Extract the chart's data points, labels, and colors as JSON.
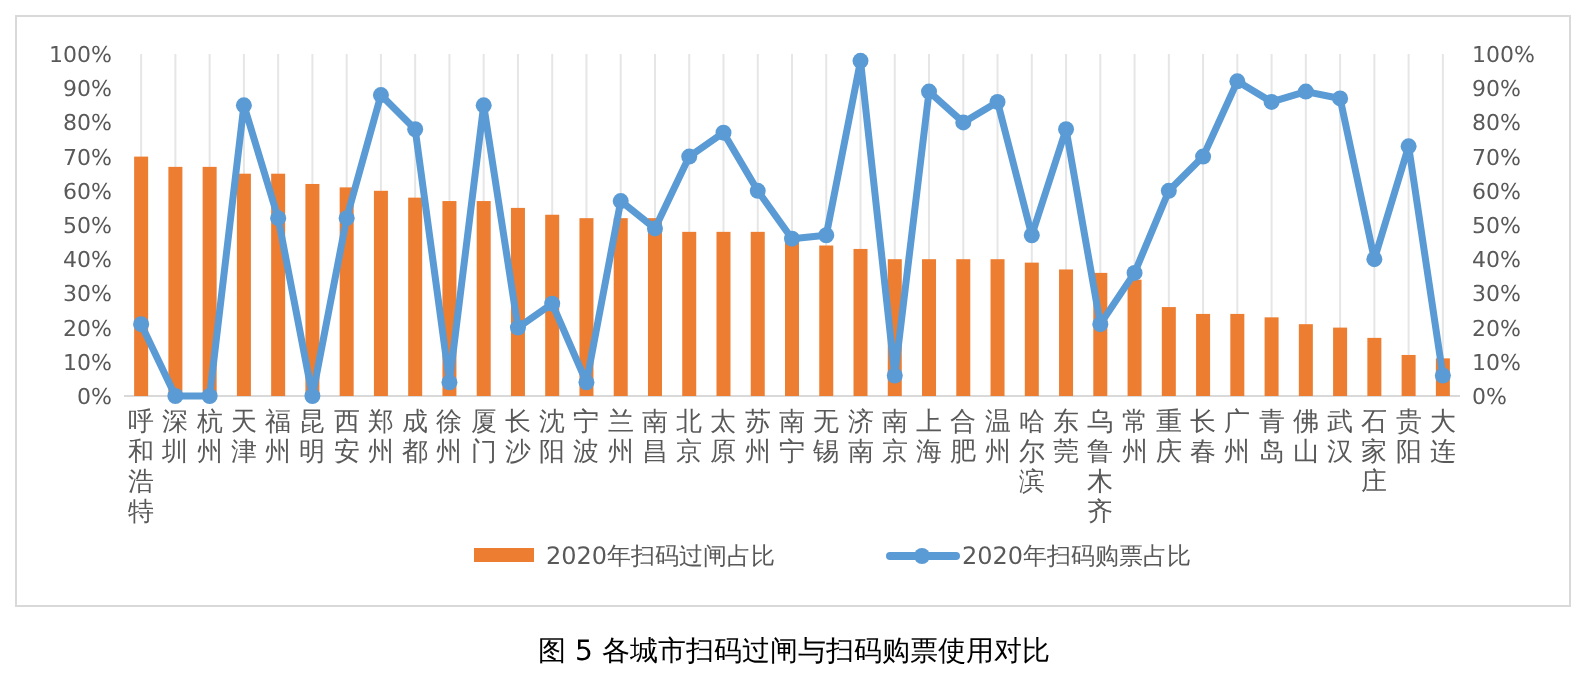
{
  "chart_data": {
    "type": "bar",
    "title": "图 5 各城市扫码过闸与扫码购票使用对比",
    "categories": [
      "呼和浩特",
      "深圳",
      "杭州",
      "天津",
      "福州",
      "昆明",
      "西安",
      "郑州",
      "成都",
      "徐州",
      "厦门",
      "长沙",
      "沈阳",
      "宁波",
      "兰州",
      "南昌",
      "北京",
      "太原",
      "苏州",
      "南宁",
      "无锡",
      "济南",
      "南京",
      "上海",
      "合肥",
      "温州",
      "哈尔滨",
      "东莞",
      "乌鲁木齐",
      "常州",
      "重庆",
      "长春",
      "广州",
      "青岛",
      "佛山",
      "武汉",
      "石家庄",
      "贵阳",
      "大连"
    ],
    "series": [
      {
        "name": "2020年扫码过闸占比",
        "color": "#ed7d31",
        "values": [
          70,
          67,
          67,
          65,
          65,
          62,
          61,
          60,
          58,
          57,
          57,
          55,
          53,
          52,
          52,
          52,
          48,
          48,
          48,
          45,
          44,
          43,
          40,
          40,
          40,
          40,
          39,
          37,
          36,
          34,
          26,
          24,
          24,
          23,
          21,
          20,
          17,
          12,
          11
        ]
      },
      {
        "name": "2020年扫码购票占比",
        "type": "line",
        "axis": "y2",
        "color": "#5b9bd5",
        "marker": "circle",
        "values": [
          21,
          0,
          0,
          85,
          52,
          0,
          52,
          88,
          78,
          4,
          85,
          20,
          27,
          4,
          57,
          49,
          70,
          77,
          60,
          46,
          47,
          98,
          6,
          89,
          80,
          86,
          47,
          78,
          21,
          36,
          60,
          70,
          92,
          86,
          89,
          87,
          40,
          73,
          6
        ]
      }
    ],
    "ylim": [
      0,
      100
    ],
    "yticks": [
      {
        "value": 0,
        "label": "0%"
      },
      {
        "value": 10,
        "label": "10%"
      },
      {
        "value": 20,
        "label": "20%"
      },
      {
        "value": 30,
        "label": "30%"
      },
      {
        "value": 40,
        "label": "40%"
      },
      {
        "value": 50,
        "label": "50%"
      },
      {
        "value": 60,
        "label": "60%"
      },
      {
        "value": 70,
        "label": "70%"
      },
      {
        "value": 80,
        "label": "80%"
      },
      {
        "value": 90,
        "label": "90%"
      },
      {
        "value": 100,
        "label": "100%"
      }
    ],
    "y2lim": [
      0,
      100
    ],
    "y2ticks": [
      {
        "value": 0,
        "label": "0%"
      },
      {
        "value": 10,
        "label": "10%"
      },
      {
        "value": 20,
        "label": "20%"
      },
      {
        "value": 30,
        "label": "30%"
      },
      {
        "value": 40,
        "label": "40%"
      },
      {
        "value": 50,
        "label": "50%"
      },
      {
        "value": 60,
        "label": "60%"
      },
      {
        "value": 70,
        "label": "70%"
      },
      {
        "value": 80,
        "label": "80%"
      },
      {
        "value": 90,
        "label": "90%"
      },
      {
        "value": 100,
        "label": "100%"
      }
    ],
    "grid": "x",
    "legend": "bottom"
  }
}
